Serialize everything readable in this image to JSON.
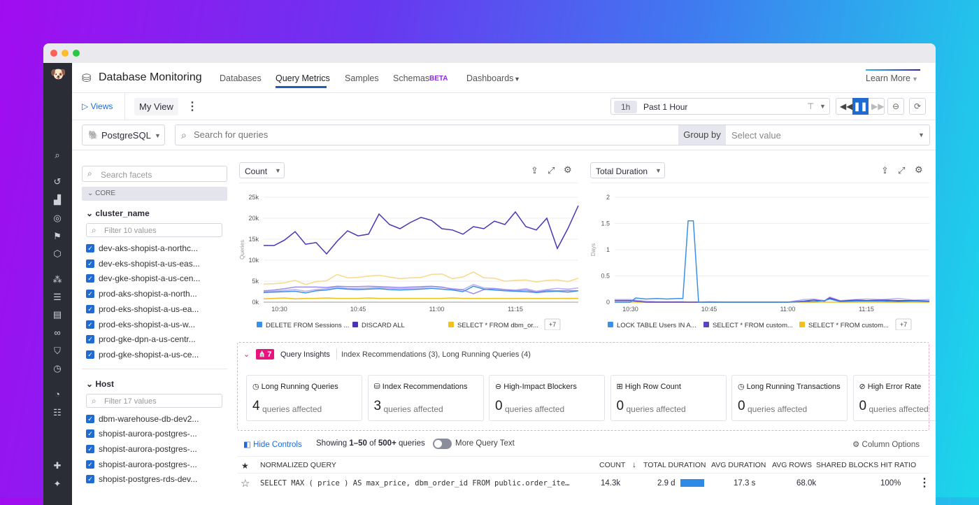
{
  "app": {
    "title": "Database Monitoring"
  },
  "nav_tabs": [
    {
      "label": "Databases"
    },
    {
      "label": "Query Metrics",
      "active": true
    },
    {
      "label": "Samples"
    },
    {
      "label": "Schemas",
      "badge": "BETA"
    },
    {
      "label": "Dashboards"
    }
  ],
  "learn_more": "Learn More",
  "toolbar": {
    "views": "Views",
    "view_name": "My View",
    "time_badge": "1h",
    "time_label": "Past 1 Hour"
  },
  "filters": {
    "db_type": "PostgreSQL",
    "search_placeholder": "Search for queries",
    "group_by": "Group by",
    "group_by_placeholder": "Select value"
  },
  "facets": {
    "search_placeholder": "Search facets",
    "section": "CORE",
    "groups": [
      {
        "name": "cluster_name",
        "filter_placeholder": "Filter 10 values",
        "items": [
          "dev-aks-shopist-a-northc...",
          "dev-eks-shopist-a-us-eas...",
          "dev-gke-shopist-a-us-cen...",
          "prod-aks-shopist-a-north...",
          "prod-eks-shopist-a-us-ea...",
          "prod-eks-shopist-a-us-w...",
          "prod-gke-dpn-a-us-centr...",
          "prod-gke-shopist-a-us-ce..."
        ]
      },
      {
        "name": "Host",
        "filter_placeholder": "Filter 17 values",
        "items": [
          "dbm-warehouse-db-dev2...",
          "shopist-aurora-postgres-...",
          "shopist-aurora-postgres-...",
          "shopist-aurora-postgres-...",
          "shopist-postgres-rds-dev..."
        ]
      }
    ]
  },
  "chart_data": [
    {
      "type": "line",
      "metric_selector": "Count",
      "ylabel": "Queries",
      "ylim": [
        0,
        25000
      ],
      "yticks": [
        "0k",
        "5k",
        "10k",
        "15k",
        "20k",
        "25k"
      ],
      "xticks": [
        "10:30",
        "10:45",
        "11:00",
        "11:15"
      ],
      "grid": true,
      "legend_more": "+7",
      "x": [
        "10:27",
        "10:29",
        "10:31",
        "10:33",
        "10:35",
        "10:37",
        "10:39",
        "10:41",
        "10:43",
        "10:45",
        "10:47",
        "10:49",
        "10:51",
        "10:53",
        "10:55",
        "10:57",
        "10:59",
        "11:01",
        "11:03",
        "11:05",
        "11:07",
        "11:09",
        "11:11",
        "11:13",
        "11:15",
        "11:17",
        "11:19",
        "11:21",
        "11:23",
        "11:25",
        "11:27"
      ],
      "series": [
        {
          "name": "DELETE FROM Sessions ...",
          "color": "#3c8fe6",
          "values": [
            2300,
            2400,
            2500,
            2600,
            2200,
            2700,
            2900,
            3300,
            3100,
            3000,
            3100,
            3200,
            3000,
            2900,
            3000,
            3100,
            3300,
            3100,
            2900,
            2500,
            3800,
            3100,
            2900,
            2700,
            2600,
            2500,
            2300,
            2500,
            2600,
            2400,
            2700
          ]
        },
        {
          "name": "DISCARD ALL",
          "color": "#4b35b5",
          "values": [
            13500,
            13500,
            14800,
            16800,
            13800,
            14200,
            11500,
            14500,
            17000,
            15800,
            16200,
            21000,
            18500,
            17500,
            19000,
            20200,
            19500,
            17500,
            17200,
            16200,
            18000,
            17500,
            19300,
            18500,
            21500,
            18000,
            17200,
            20000,
            12800,
            17500,
            23000
          ]
        },
        {
          "name": "SELECT * FROM dbm_or...",
          "color": "#f0c020",
          "values": [
            800,
            900,
            1000,
            800,
            900,
            900,
            1000,
            900,
            900,
            900,
            1000,
            900,
            900,
            900,
            900,
            900,
            900,
            900,
            1000,
            900,
            900,
            900,
            900,
            900,
            900,
            900,
            900,
            900,
            900,
            900,
            900
          ]
        },
        {
          "color": "#f7d98a",
          "values": [
            4300,
            4400,
            4600,
            5200,
            4200,
            4900,
            5100,
            6600,
            5800,
            5900,
            6200,
            6400,
            6000,
            5600,
            5800,
            5900,
            6600,
            6700,
            5600,
            6000,
            7200,
            5800,
            5700,
            5000,
            5200,
            5300,
            4800,
            5200,
            5300,
            4900,
            5700
          ]
        },
        {
          "color": "#9a8ef0",
          "values": [
            2700,
            2900,
            3200,
            3600,
            3600,
            3600,
            3500,
            3800,
            3700,
            3700,
            3800,
            3700,
            3600,
            3500,
            3600,
            3700,
            3800,
            3600,
            3100,
            2900,
            2000,
            3000,
            3200,
            3000,
            2700,
            2900,
            2400,
            2800,
            2700,
            2800,
            2700
          ]
        },
        {
          "color": "#b9b0f5",
          "values": [
            2500,
            2600,
            2800,
            3000,
            2600,
            3000,
            3200,
            3600,
            3300,
            3300,
            3400,
            3500,
            3300,
            3200,
            3300,
            3400,
            3700,
            3500,
            3200,
            3000,
            4200,
            3400,
            3300,
            3000,
            2900,
            3200,
            2600,
            3000,
            3300,
            3100,
            3400
          ]
        }
      ]
    },
    {
      "type": "line",
      "metric_selector": "Total Duration",
      "ylabel": "Days",
      "ylim": [
        0,
        2
      ],
      "yticks": [
        "0",
        "0.5",
        "1",
        "1.5",
        "2"
      ],
      "xticks": [
        "10:30",
        "10:45",
        "11:00",
        "11:15"
      ],
      "grid": true,
      "legend_more": "+7",
      "x": [
        "10:27",
        "10:29",
        "10:30",
        "10:31",
        "10:33",
        "10:35",
        "10:37",
        "10:39",
        "10:40",
        "10:41",
        "10:42",
        "10:43",
        "10:45",
        "10:50",
        "10:55",
        "11:00",
        "11:03",
        "11:05",
        "11:07",
        "11:08",
        "11:10",
        "11:13",
        "11:15",
        "11:18",
        "11:21",
        "11:24",
        "11:27"
      ],
      "series": [
        {
          "name": "LOCK TABLE Users IN A...",
          "color": "#3c8fe6",
          "values": [
            0,
            0,
            0,
            0.08,
            0.06,
            0.07,
            0.06,
            0.07,
            0.07,
            1.55,
            1.55,
            0,
            0,
            0,
            0,
            0,
            0.01,
            0.01,
            0.03,
            0.06,
            0.01,
            0.02,
            0.02,
            0.02,
            0.01,
            0.02,
            0.01
          ]
        },
        {
          "name": "SELECT * FROM custom...",
          "color": "#5b43c8",
          "values": [
            0.03,
            0.03,
            0.03,
            0.02,
            0,
            0,
            0,
            0,
            0,
            0,
            0,
            0,
            0,
            0,
            0,
            0,
            0.02,
            0.04,
            0.02,
            0.08,
            0.02,
            0.04,
            0.03,
            0.04,
            0.03,
            0.03,
            0.02
          ]
        },
        {
          "name": "SELECT * FROM custom...",
          "color": "#f0c020",
          "values": [
            0,
            0,
            0,
            0,
            0,
            0,
            0,
            0,
            0,
            0,
            0,
            0,
            0,
            0,
            0,
            0,
            0,
            0,
            0,
            0,
            0,
            0,
            0,
            0,
            0,
            0,
            0
          ]
        },
        {
          "color": "#b9b0f5",
          "values": [
            0.05,
            0.05,
            0.05,
            0.04,
            0.02,
            0.01,
            0.01,
            0.01,
            0.01,
            0,
            0,
            0,
            0.01,
            0,
            0,
            0,
            0.05,
            0.06,
            0.03,
            0.1,
            0.03,
            0.05,
            0.06,
            0.05,
            0.07,
            0.04,
            0.05
          ]
        }
      ]
    }
  ],
  "insights": {
    "count": "7",
    "title": "Query Insights",
    "summary": "Index Recommendations (3), Long Running Queries (4)",
    "affected_label": "queries affected",
    "cards": [
      {
        "title": "Long Running Queries",
        "count": "4",
        "icon": "clock"
      },
      {
        "title": "Index Recommendations",
        "count": "3",
        "icon": "database"
      },
      {
        "title": "High-Impact Blockers",
        "count": "0",
        "icon": "minus-circle"
      },
      {
        "title": "High Row Count",
        "count": "0",
        "icon": "table"
      },
      {
        "title": "Long Running Transactions",
        "count": "0",
        "icon": "clock"
      },
      {
        "title": "High Error Rate",
        "count": "0",
        "icon": "ban"
      }
    ]
  },
  "table_controls": {
    "hide_controls": "Hide Controls",
    "showing_prefix": "Showing ",
    "range": "1–50",
    "of": " of ",
    "total": "500+",
    "suffix": " queries",
    "more_query_text": "More Query Text",
    "column_options": "Column Options"
  },
  "table": {
    "columns": [
      "NORMALIZED QUERY",
      "COUNT",
      "TOTAL DURATION",
      "AVG DURATION",
      "AVG ROWS",
      "SHARED BLOCKS HIT RATIO"
    ],
    "rows": [
      {
        "query": "SELECT MAX ( price ) AS max_price, dbm_order_id FROM public.order_ite…",
        "count": "14.3k",
        "total_duration": "2.9 d",
        "total_duration_fraction": 1.0,
        "avg_duration": "17.3 s",
        "avg_rows": "68.0k",
        "hit_ratio": "100%"
      }
    ]
  },
  "colors": {
    "accent": "#1f6bd1",
    "insight": "#e8137f",
    "beta": "#8a2be2"
  }
}
